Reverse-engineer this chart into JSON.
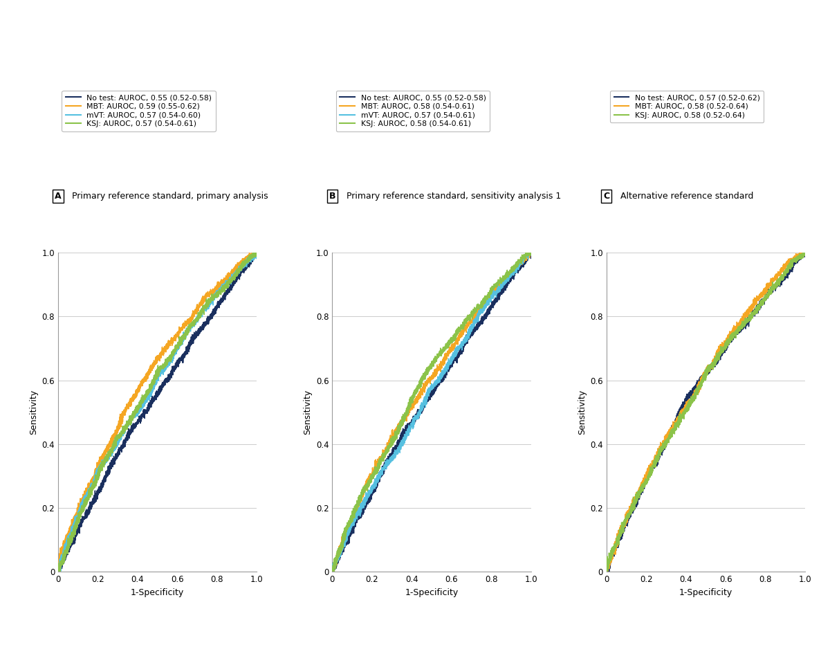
{
  "panels": [
    {
      "label": "A",
      "title": "Primary reference standard, primary analysis",
      "legend": [
        {
          "name": "No test: AUROC, 0.55 (0.52-0.58)",
          "color": "#1a2f5e",
          "auroc": 0.55
        },
        {
          "name": "MBT: AUROC, 0.59 (0.55-0.62)",
          "color": "#f5a623",
          "auroc": 0.59
        },
        {
          "name": "mVT: AUROC, 0.57 (0.54-0.60)",
          "color": "#56c0e0",
          "auroc": 0.57
        },
        {
          "name": "KSJ: AUROC, 0.57 (0.54-0.61)",
          "color": "#8bc34a",
          "auroc": 0.57
        }
      ],
      "seeds": [
        42,
        123,
        77,
        55
      ]
    },
    {
      "label": "B",
      "title": "Primary reference standard, sensitivity analysis 1",
      "legend": [
        {
          "name": "No test: AUROC, 0.55 (0.52-0.58)",
          "color": "#1a2f5e",
          "auroc": 0.55
        },
        {
          "name": "MBT: AUROC, 0.58 (0.54-0.61)",
          "color": "#f5a623",
          "auroc": 0.58
        },
        {
          "name": "mVT: AUROC, 0.57 (0.54-0.61)",
          "color": "#56c0e0",
          "auroc": 0.57
        },
        {
          "name": "KSJ: AUROC, 0.58 (0.54-0.61)",
          "color": "#8bc34a",
          "auroc": 0.58
        }
      ],
      "seeds": [
        42,
        200,
        88,
        66
      ]
    },
    {
      "label": "C",
      "title": "Alternative reference standard",
      "legend": [
        {
          "name": "No test: AUROC, 0.57 (0.52-0.62)",
          "color": "#1a2f5e",
          "auroc": 0.57
        },
        {
          "name": "MBT: AUROC, 0.58 (0.52-0.64)",
          "color": "#f5a623",
          "auroc": 0.58
        },
        {
          "name": "KSJ: AUROC, 0.58 (0.52-0.64)",
          "color": "#8bc34a",
          "auroc": 0.58
        }
      ],
      "seeds": [
        300,
        400,
        500
      ]
    }
  ],
  "xlabel": "1-Specificity",
  "ylabel": "Sensitivity",
  "xlim": [
    0,
    1.0
  ],
  "ylim": [
    0,
    1.0
  ],
  "xticks": [
    0,
    0.2,
    0.4,
    0.6,
    0.8,
    1.0
  ],
  "yticks": [
    0,
    0.2,
    0.4,
    0.6,
    0.8,
    1.0
  ],
  "background_color": "#ffffff",
  "line_width": 1.1,
  "n_samples": 2000
}
